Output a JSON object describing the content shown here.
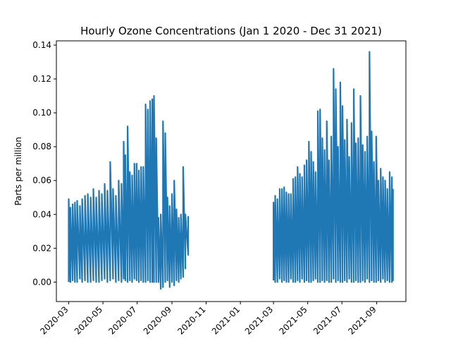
{
  "chart_data": {
    "type": "line",
    "title": "Hourly Ozone Concentrations (Jan 1 2020 - Dec 31 2021)",
    "xlabel": "",
    "ylabel": "Parts per million",
    "x_axis_kind": "date",
    "xlim": [
      "2020-02-08",
      "2021-10-23"
    ],
    "ylim": [
      -0.0115,
      0.1425
    ],
    "x_ticks": [
      "2020-03",
      "2020-05",
      "2020-07",
      "2020-09",
      "2020-11",
      "2021-01",
      "2021-03",
      "2021-05",
      "2021-07",
      "2021-09"
    ],
    "y_ticks": [
      0.0,
      0.02,
      0.04,
      0.06,
      0.08,
      0.1,
      0.12,
      0.14
    ],
    "y_tick_labels": [
      "0.00",
      "0.02",
      "0.04",
      "0.06",
      "0.08",
      "0.10",
      "0.12",
      "0.14"
    ],
    "grid": false,
    "legend": "none",
    "series": [
      {
        "color": "#1f77b4",
        "segments": [
          {
            "x": [
              "2020-03-01",
              "2020-03-04",
              "2020-03-08",
              "2020-03-12",
              "2020-03-16",
              "2020-03-21",
              "2020-03-25",
              "2020-03-30",
              "2020-04-04",
              "2020-04-09",
              "2020-04-14",
              "2020-04-19",
              "2020-04-24",
              "2020-04-29",
              "2020-05-04",
              "2020-05-09",
              "2020-05-14",
              "2020-05-19",
              "2020-05-24",
              "2020-05-29",
              "2020-06-03",
              "2020-06-07",
              "2020-06-10",
              "2020-06-14",
              "2020-06-18",
              "2020-06-22",
              "2020-06-26",
              "2020-06-30",
              "2020-07-04",
              "2020-07-08",
              "2020-07-12",
              "2020-07-16",
              "2020-07-20",
              "2020-07-24",
              "2020-07-28",
              "2020-07-31",
              "2020-08-04",
              "2020-08-08",
              "2020-08-12",
              "2020-08-16",
              "2020-08-20",
              "2020-08-24",
              "2020-08-28",
              "2020-09-01",
              "2020-09-05",
              "2020-09-09",
              "2020-09-13",
              "2020-09-17",
              "2020-09-21",
              "2020-09-25",
              "2020-09-30"
            ],
            "y": [
              0.049,
              0.044,
              0.046,
              0.047,
              0.048,
              0.045,
              0.049,
              0.051,
              0.052,
              0.05,
              0.055,
              0.05,
              0.054,
              0.052,
              0.058,
              0.054,
              0.071,
              0.055,
              0.051,
              0.06,
              0.058,
              0.083,
              0.075,
              0.092,
              0.065,
              0.063,
              0.07,
              0.07,
              0.066,
              0.068,
              0.068,
              0.105,
              0.102,
              0.107,
              0.108,
              0.11,
              0.085,
              0.038,
              0.04,
              0.095,
              0.088,
              0.05,
              0.045,
              0.052,
              0.06,
              0.043,
              0.038,
              0.04,
              0.068,
              0.04,
              0.039
            ],
            "y_low": [
              0.0,
              0.0,
              0.001,
              0.0,
              0.0,
              0.002,
              0.0,
              0.001,
              0.0,
              0.0,
              0.001,
              0.0,
              0.0,
              0.001,
              0.002,
              0.0,
              0.001,
              0.002,
              0.0,
              0.001,
              0.0,
              0.002,
              0.001,
              0.0,
              0.001,
              0.0,
              0.002,
              0.001,
              0.0,
              0.001,
              0.0,
              0.0,
              0.001,
              0.0,
              0.0,
              0.0,
              0.0,
              0.0,
              -0.004,
              -0.003,
              0.0,
              0.001,
              -0.003,
              0.0,
              -0.002,
              0.001,
              0.0,
              0.002,
              0.003,
              0.008,
              0.016
            ]
          },
          {
            "x": [
              "2021-03-01",
              "2021-03-04",
              "2021-03-08",
              "2021-03-12",
              "2021-03-16",
              "2021-03-20",
              "2021-03-24",
              "2021-03-28",
              "2021-04-01",
              "2021-04-05",
              "2021-04-09",
              "2021-04-13",
              "2021-04-17",
              "2021-04-21",
              "2021-04-25",
              "2021-04-29",
              "2021-05-03",
              "2021-05-07",
              "2021-05-11",
              "2021-05-15",
              "2021-05-19",
              "2021-05-23",
              "2021-05-27",
              "2021-05-31",
              "2021-06-04",
              "2021-06-08",
              "2021-06-12",
              "2021-06-16",
              "2021-06-20",
              "2021-06-24",
              "2021-06-28",
              "2021-07-02",
              "2021-07-06",
              "2021-07-10",
              "2021-07-14",
              "2021-07-18",
              "2021-07-22",
              "2021-07-26",
              "2021-07-30",
              "2021-08-03",
              "2021-08-07",
              "2021-08-11",
              "2021-08-15",
              "2021-08-19",
              "2021-08-23",
              "2021-08-27",
              "2021-08-31",
              "2021-09-04",
              "2021-09-08",
              "2021-09-12",
              "2021-09-16",
              "2021-09-20",
              "2021-09-24",
              "2021-09-28",
              "2021-09-30"
            ],
            "y": [
              0.047,
              0.051,
              0.049,
              0.055,
              0.055,
              0.056,
              0.053,
              0.052,
              0.052,
              0.061,
              0.062,
              0.068,
              0.064,
              0.062,
              0.069,
              0.072,
              0.083,
              0.077,
              0.071,
              0.065,
              0.101,
              0.102,
              0.085,
              0.078,
              0.095,
              0.072,
              0.086,
              0.126,
              0.114,
              0.08,
              0.118,
              0.104,
              0.084,
              0.096,
              0.074,
              0.094,
              0.114,
              0.082,
              0.085,
              0.11,
              0.081,
              0.077,
              0.086,
              0.136,
              0.089,
              0.071,
              0.086,
              0.06,
              0.067,
              0.062,
              0.06,
              0.055,
              0.065,
              0.062,
              0.055
            ],
            "y_low": [
              0.001,
              0.0,
              0.0,
              0.002,
              0.0,
              0.001,
              0.0,
              0.0,
              0.002,
              0.0,
              0.0,
              0.001,
              0.0,
              0.002,
              0.0,
              0.001,
              0.0,
              0.0,
              0.001,
              0.002,
              0.0,
              0.0,
              0.001,
              0.0,
              0.001,
              0.0,
              0.0,
              0.002,
              0.0,
              0.001,
              0.0,
              0.0,
              0.001,
              0.0,
              0.002,
              0.0,
              0.0,
              0.001,
              0.0,
              0.0,
              0.001,
              0.0,
              0.002,
              0.0,
              0.001,
              0.0,
              0.0,
              0.001,
              0.0,
              0.002,
              0.0,
              0.001,
              0.0,
              0.0,
              0.001
            ]
          }
        ]
      }
    ]
  }
}
